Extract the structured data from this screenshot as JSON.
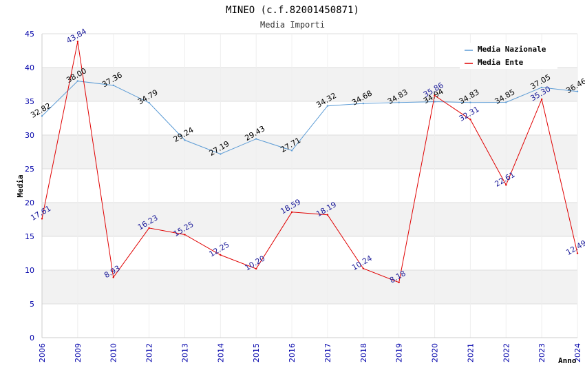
{
  "chart_data": {
    "type": "line",
    "title": "MINEO (c.f.82001450871)",
    "subtitle": "Media Importi",
    "xlabel": "Anno",
    "ylabel": "Media",
    "ylim": [
      0,
      45
    ],
    "yticks": [
      0,
      5,
      10,
      15,
      20,
      25,
      30,
      35,
      40,
      45
    ],
    "categories": [
      "2006",
      "2009",
      "2010",
      "2012",
      "2013",
      "2014",
      "2015",
      "2016",
      "2017",
      "2018",
      "2019",
      "2020",
      "2021",
      "2022",
      "2023",
      "2024"
    ],
    "series": [
      {
        "name": "Media Nazionale",
        "color": "#5b9bd5",
        "values": [
          32.82,
          38.0,
          37.36,
          34.79,
          29.24,
          27.19,
          29.43,
          27.71,
          34.32,
          34.68,
          34.83,
          34.94,
          34.83,
          34.85,
          37.05,
          36.46
        ],
        "labels": [
          "32.82",
          "38.00",
          "37.36",
          "34.79",
          "29.24",
          "27.19",
          "29.43",
          "27.71",
          "34.32",
          "34.68",
          "34.83",
          "34.94",
          "34.83",
          "34.85",
          "37.05",
          "36.46"
        ]
      },
      {
        "name": "Media Ente",
        "color": "#e00000",
        "values": [
          17.61,
          43.84,
          8.93,
          16.23,
          15.25,
          12.25,
          10.2,
          18.59,
          18.19,
          10.24,
          8.18,
          35.86,
          32.31,
          22.61,
          35.3,
          12.49
        ],
        "labels": [
          "17.61",
          "43.84",
          "8.93",
          "16.23",
          "15.25",
          "12.25",
          "10.20",
          "18.59",
          "18.19",
          "10.24",
          "8.18",
          "35.86",
          "32.31",
          "22.61",
          "35.30",
          "12.49"
        ]
      }
    ],
    "legend": {
      "position": "top-right"
    },
    "grid": true
  }
}
